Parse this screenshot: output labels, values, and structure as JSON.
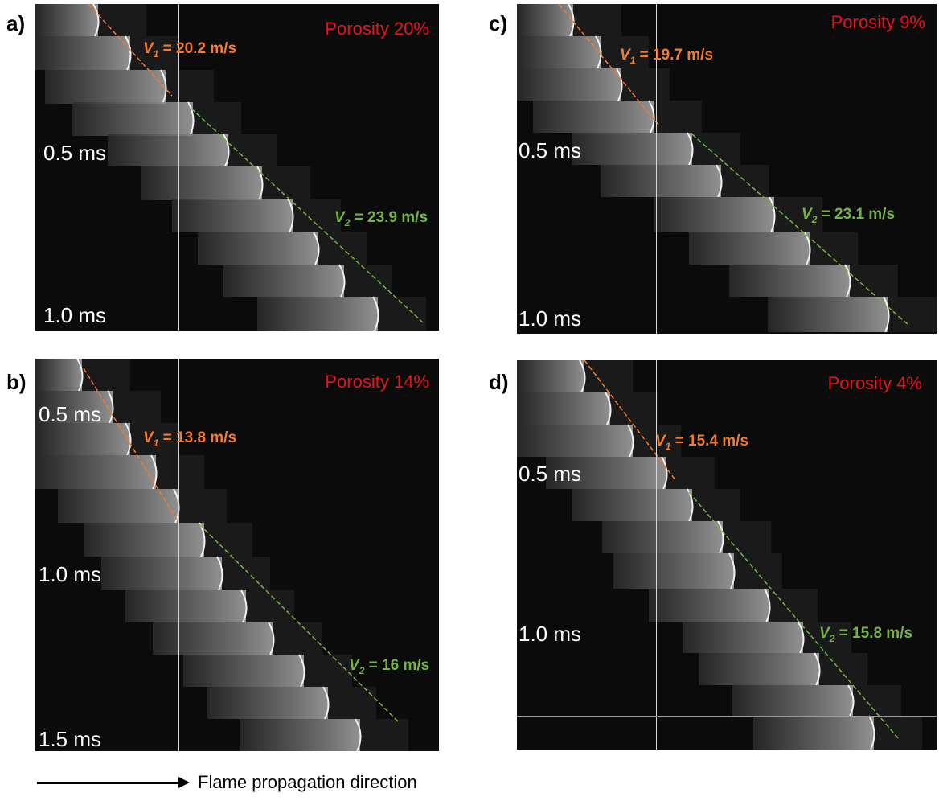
{
  "panels": [
    {
      "letter": "a)",
      "porosity": "Porosity 20%",
      "times": [
        "0.5 ms",
        "1.0 ms"
      ],
      "v1": {
        "symbol": "V",
        "sub": "1",
        "value": "= 20.2 m/s"
      },
      "v2": {
        "symbol": "V",
        "sub": "2",
        "value": "= 23.9 m/s"
      }
    },
    {
      "letter": "b)",
      "porosity": "Porosity 14%",
      "times": [
        "0.5 ms",
        "1.0 ms",
        "1.5 ms"
      ],
      "v1": {
        "symbol": "V",
        "sub": "1",
        "value": "= 13.8 m/s"
      },
      "v2": {
        "symbol": "V",
        "sub": "2",
        "value": "= 16 m/s"
      }
    },
    {
      "letter": "c)",
      "porosity": "Porosity 9%",
      "times": [
        "0.5 ms",
        "1.0 ms"
      ],
      "v1": {
        "symbol": "V",
        "sub": "1",
        "value": "= 19.7 m/s"
      },
      "v2": {
        "symbol": "V",
        "sub": "2",
        "value": "= 23.1 m/s"
      }
    },
    {
      "letter": "d)",
      "porosity": "Porosity 4%",
      "times": [
        "0.5 ms",
        "1.0 ms"
      ],
      "v1": {
        "symbol": "V",
        "sub": "1",
        "value": "= 15.4 m/s"
      },
      "v2": {
        "symbol": "V",
        "sub": "2",
        "value": "= 15.8 m/s"
      }
    }
  ],
  "footer": {
    "label": "Flame propagation direction"
  },
  "colors": {
    "v1": "#f47a30",
    "v2": "#74b443",
    "porosity": "#e8141b",
    "background": "#0b0b0b"
  }
}
